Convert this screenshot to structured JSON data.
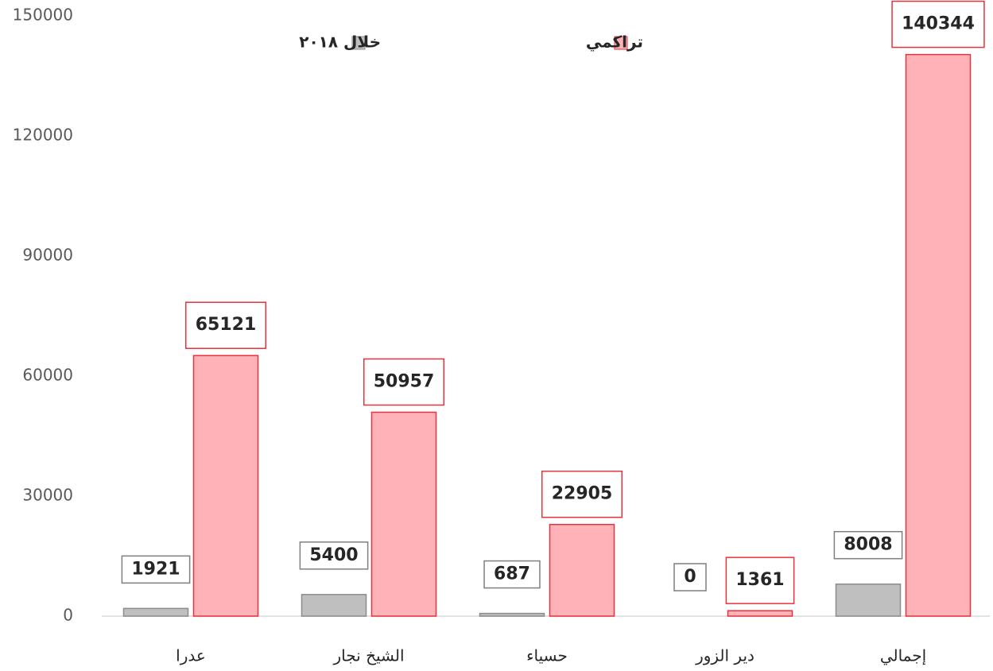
{
  "chart_data": {
    "type": "bar",
    "categories": [
      "عدرا",
      "الشيخ نجار",
      "حسياء",
      "دير الزور",
      "إجمالي"
    ],
    "series": [
      {
        "name": "خلال ٢٠١٨",
        "color": "#bfbfbf",
        "values": [
          1921,
          5400,
          687,
          0,
          8008
        ]
      },
      {
        "name": "تراكمي",
        "color": "#ffb3b8",
        "values": [
          65121,
          50957,
          22905,
          1361,
          140344
        ]
      }
    ],
    "ylim": [
      0,
      150000
    ],
    "yticks": [
      0,
      30000,
      60000,
      90000,
      120000,
      150000
    ],
    "grid": false
  }
}
